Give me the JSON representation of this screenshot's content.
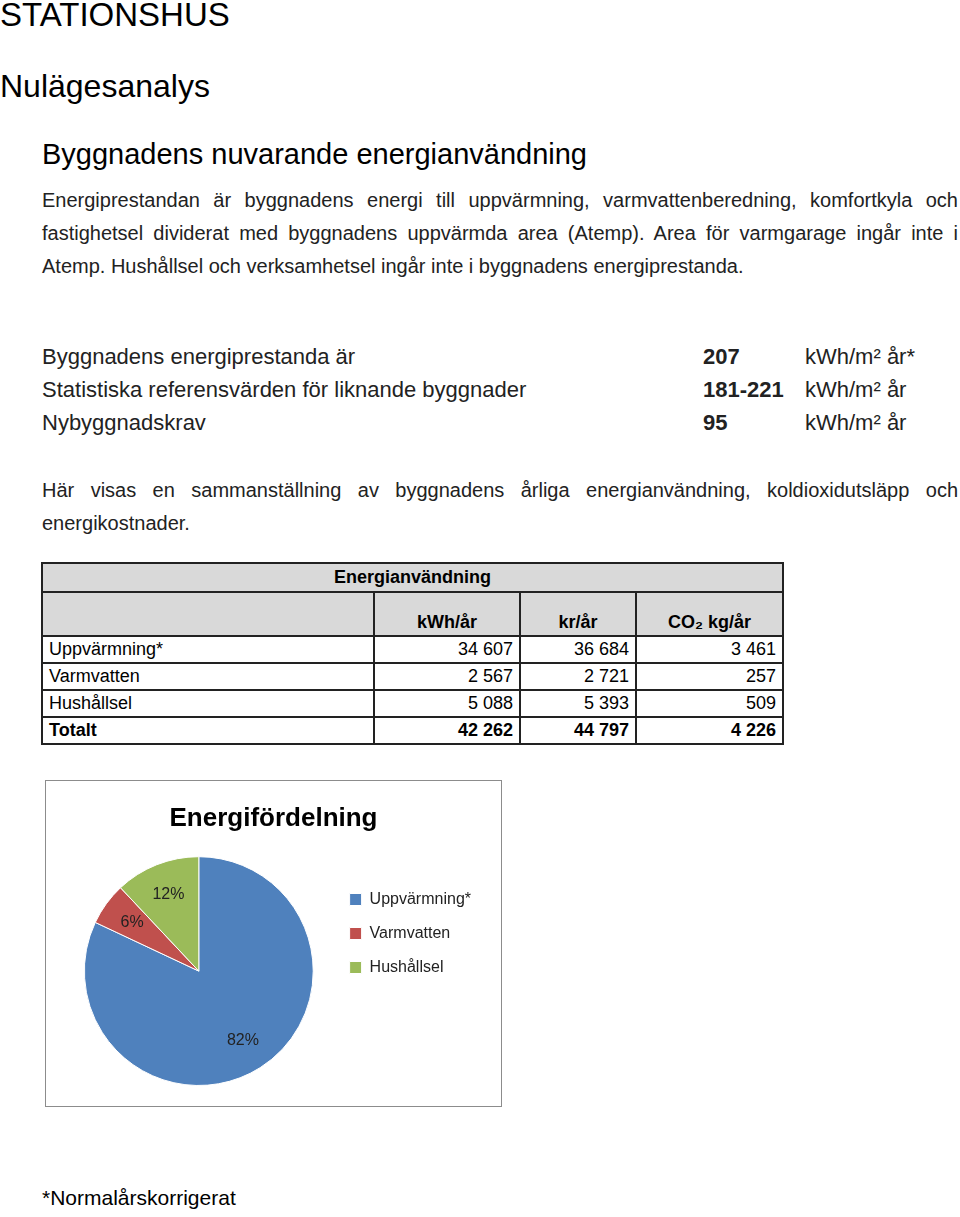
{
  "header": {
    "title": "STATIONSHUS",
    "subtitle": "Nulägesanalys"
  },
  "section": {
    "heading": "Byggnadens nuvarande energianvändning",
    "intro": "Energiprestandan är byggnadens energi till uppvärmning, varmvattenberedning, komfortkyla och fastighetsel dividerat med byggnadens uppvärmda area (Atemp). Area för varmgarage ingår inte i Atemp. Hushållsel och verksamhetsel ingår inte i byggnadens energiprestanda.",
    "key_figures": [
      {
        "label": "Byggnadens energiprestanda är",
        "value": "207",
        "unit": "kWh/m² år*"
      },
      {
        "label": "Statistiska referensvärden för liknande byggnader",
        "value": "181-221",
        "unit": "kWh/m² år"
      },
      {
        "label": "Nybyggnadskrav",
        "value": "95",
        "unit": "kWh/m² år"
      }
    ],
    "summary": "Här visas en sammanställning av byggnadens årliga energianvändning, koldioxidutsläpp och energikostnader."
  },
  "table": {
    "title": "Energianvändning",
    "columns": [
      "kWh/år",
      "kr/år",
      "CO₂ kg/år"
    ],
    "rows": [
      [
        "Uppvärmning*",
        "34 607",
        "36 684",
        "3 461"
      ],
      [
        "Varmvatten",
        "2 567",
        "2 721",
        "257"
      ],
      [
        "Hushållsel",
        "5 088",
        "5 393",
        "509"
      ]
    ],
    "total": [
      "Totalt",
      "42 262",
      "44 797",
      "4 226"
    ]
  },
  "chart_data": {
    "type": "pie",
    "title": "Energifördelning",
    "categories": [
      "Uppvärmning*",
      "Varmvatten",
      "Hushållsel"
    ],
    "values": [
      82,
      6,
      12
    ],
    "value_labels": [
      "82%",
      "6%",
      "12%"
    ],
    "colors": [
      "#4f81bd",
      "#c0504d",
      "#9bbb59"
    ],
    "legend": "right",
    "data_labels": true
  },
  "footnote": "*Normalårskorrigerat"
}
